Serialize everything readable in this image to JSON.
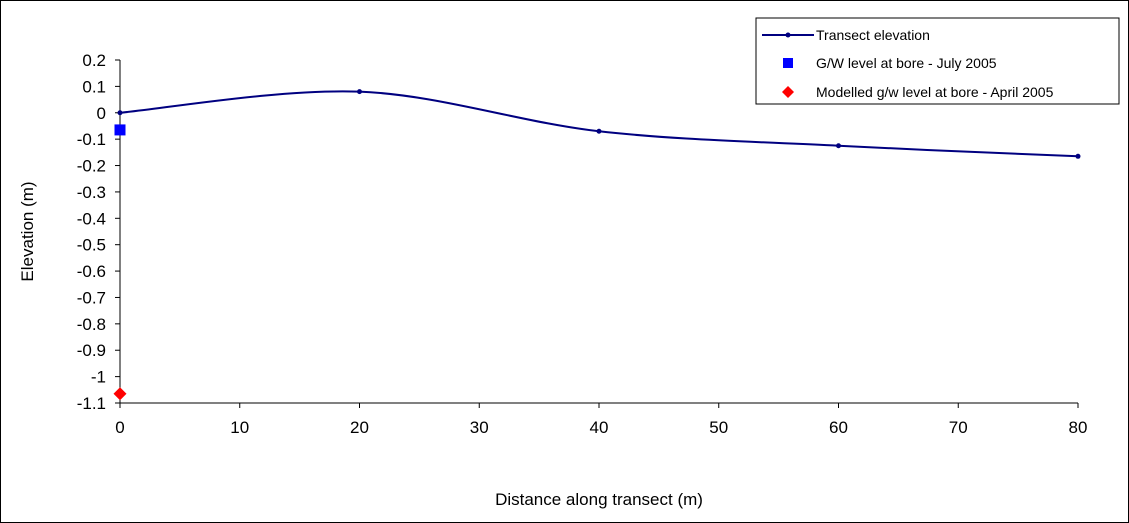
{
  "chart_data": {
    "type": "line",
    "xlabel": "Distance along transect (m)",
    "ylabel": "Elevation (m)",
    "xlim": [
      0,
      80
    ],
    "ylim": [
      -1.1,
      0.2
    ],
    "x_ticks": [
      0,
      10,
      20,
      30,
      40,
      50,
      60,
      70,
      80
    ],
    "y_ticks": [
      0.2,
      0.1,
      0,
      -0.1,
      -0.2,
      -0.3,
      -0.4,
      -0.5,
      -0.6,
      -0.7,
      -0.8,
      -0.9,
      -1,
      -1.1
    ],
    "grid": false,
    "legend_position": "top-right",
    "series": [
      {
        "name": "Transect elevation",
        "kind": "line-with-markers",
        "color": "#000080",
        "marker": "dot",
        "x": [
          0,
          20,
          40,
          60,
          80
        ],
        "y": [
          0.0,
          0.08,
          -0.07,
          -0.125,
          -0.165
        ]
      },
      {
        "name": "G/W level at bore - July 2005",
        "kind": "marker",
        "color": "#0000FF",
        "marker": "square",
        "x": [
          0
        ],
        "y": [
          -0.065
        ]
      },
      {
        "name": "Modelled g/w level at bore - April 2005",
        "kind": "marker",
        "color": "#FF0000",
        "marker": "diamond",
        "x": [
          0
        ],
        "y": [
          -1.065
        ]
      }
    ]
  }
}
